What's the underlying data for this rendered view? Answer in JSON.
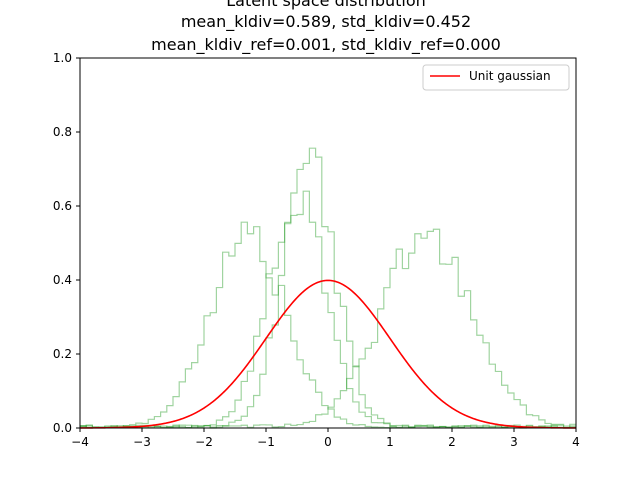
{
  "chart_data": {
    "type": "line",
    "title": [
      "Latent space distribution",
      "mean_kldiv=0.589, std_kldiv=0.452",
      "mean_kldiv_ref=0.001, std_kldiv_ref=0.000"
    ],
    "xlabel": "",
    "ylabel": "",
    "xlim": [
      -4,
      4
    ],
    "ylim": [
      0.0,
      1.0
    ],
    "x_ticks": [
      -4,
      -3,
      -2,
      -1,
      0,
      1,
      2,
      3,
      4
    ],
    "y_ticks": [
      0.0,
      0.2,
      0.4,
      0.6,
      0.8,
      1.0
    ],
    "x_tick_labels": [
      "−4",
      "−3",
      "−2",
      "−1",
      "0",
      "1",
      "2",
      "3",
      "4"
    ],
    "y_tick_labels": [
      "0.0",
      "0.2",
      "0.4",
      "0.6",
      "0.8",
      "1.0"
    ],
    "grid": false,
    "legend": {
      "position": "top-right",
      "entries": [
        {
          "label": "Unit gaussian",
          "color": "#ff0000"
        }
      ]
    },
    "histogram_color": "#2ca02c",
    "histogram_alpha": 0.45,
    "histograms": [
      {
        "center": -1.3,
        "sd": 0.6,
        "peak": 0.52
      },
      {
        "center": -0.3,
        "sd": 0.42,
        "peak": 0.72
      },
      {
        "center": -0.5,
        "sd": 0.45,
        "peak": 0.65
      },
      {
        "center": 1.6,
        "sd": 0.72,
        "peak": 0.52
      }
    ],
    "curve": {
      "name": "Unit gaussian",
      "color": "#ff0000",
      "mean": 0,
      "sd": 1
    }
  }
}
